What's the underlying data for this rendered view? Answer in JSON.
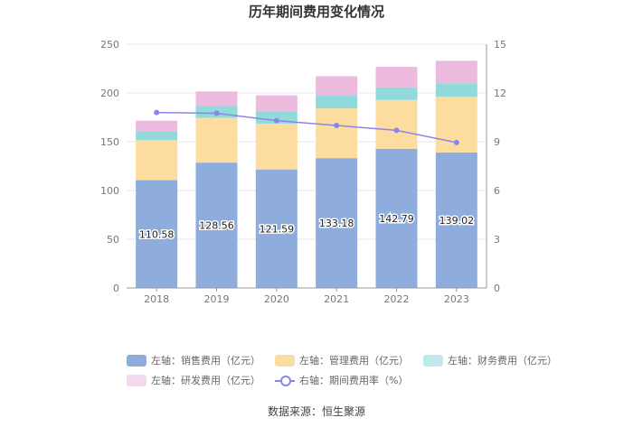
{
  "chart_data": {
    "type": "bar",
    "stacked": true,
    "title": "历年期间费用变化情况",
    "categories": [
      "2018",
      "2019",
      "2020",
      "2021",
      "2022",
      "2023"
    ],
    "series": [
      {
        "name": "左轴：销售费用（亿元）",
        "axis": "left",
        "color": "#8eaddc",
        "values": [
          110.58,
          128.56,
          121.59,
          133.18,
          142.79,
          139.02
        ],
        "labels": [
          "110.58",
          "128.56",
          "121.59",
          "133.18",
          "142.79",
          "139.02"
        ]
      },
      {
        "name": "左轴：管理费用（亿元）",
        "axis": "left",
        "color": "#fddca0",
        "values": [
          41,
          46,
          47,
          51,
          50,
          57
        ]
      },
      {
        "name": "左轴：财务费用（亿元）",
        "axis": "left",
        "color": "#92d9dc",
        "values": [
          9,
          12,
          12,
          13,
          13,
          14
        ]
      },
      {
        "name": "左轴：研发费用（亿元）",
        "axis": "left",
        "color": "#ebbadd",
        "values": [
          11,
          15,
          17,
          20,
          21,
          23
        ]
      },
      {
        "name": "右轴：期间费用率（%）",
        "axis": "right",
        "type": "line",
        "color": "#8a86e8",
        "values": [
          10.8,
          10.75,
          10.3,
          10.0,
          9.7,
          8.95
        ]
      }
    ],
    "left_axis": {
      "ylim": [
        0,
        250
      ],
      "ticks": [
        "0",
        "50",
        "100",
        "150",
        "200",
        "250"
      ]
    },
    "right_axis": {
      "ylim": [
        0,
        15
      ],
      "ticks": [
        "0",
        "3",
        "6",
        "9",
        "12",
        "15"
      ]
    },
    "grid": true,
    "legend_position": "bottom"
  },
  "source": "数据来源：恒生聚源"
}
